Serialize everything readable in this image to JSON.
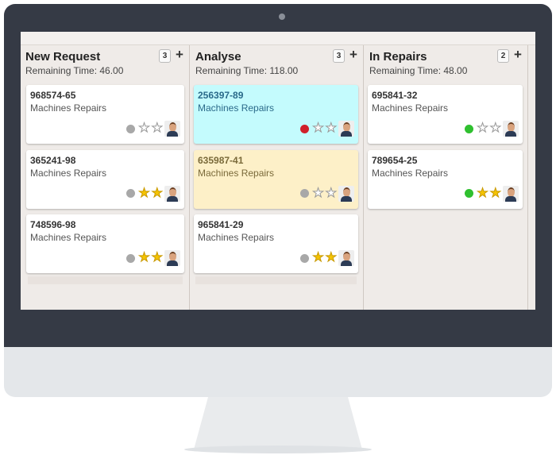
{
  "columns": [
    {
      "title": "New Request",
      "count": "3",
      "remaining": "Remaining Time: 46.00",
      "cards": [
        {
          "id": "968574-65",
          "subtitle": "Machines Repairs",
          "status": "grey",
          "stars": 0,
          "bg": "#ffffff"
        },
        {
          "id": "365241-98",
          "subtitle": "Machines Repairs",
          "status": "grey",
          "stars": 2,
          "bg": "#ffffff"
        },
        {
          "id": "748596-98",
          "subtitle": "Machines Repairs",
          "status": "grey",
          "stars": 2,
          "bg": "#ffffff"
        }
      ]
    },
    {
      "title": "Analyse",
      "count": "3",
      "remaining": "Remaining Time: 118.00",
      "cards": [
        {
          "id": "256397-89",
          "subtitle": "Machines Repairs",
          "status": "red",
          "stars": 0,
          "bg": "#c4fbfd",
          "text": "#2a6a8a"
        },
        {
          "id": "635987-41",
          "subtitle": "Machines Repairs",
          "status": "grey",
          "stars": 0,
          "bg": "#fdf0c8",
          "text": "#7a6a3a"
        },
        {
          "id": "965841-29",
          "subtitle": "Machines Repairs",
          "status": "grey",
          "stars": 2,
          "bg": "#ffffff"
        }
      ]
    },
    {
      "title": "In Repairs",
      "count": "2",
      "remaining": "Remaining Time: 48.00",
      "cards": [
        {
          "id": "695841-32",
          "subtitle": "Machines Repairs",
          "status": "green",
          "stars": 0,
          "bg": "#ffffff"
        },
        {
          "id": "789654-25",
          "subtitle": "Machines Repairs",
          "status": "green",
          "stars": 2,
          "bg": "#ffffff"
        }
      ]
    }
  ],
  "status_colors": {
    "grey": "#a8a8a8",
    "red": "#d0202a",
    "green": "#2fc02f"
  },
  "icons": {
    "status": "status-dot-icon",
    "star": "star-icon",
    "avatar": "user-avatar-icon",
    "add": "plus-icon"
  }
}
